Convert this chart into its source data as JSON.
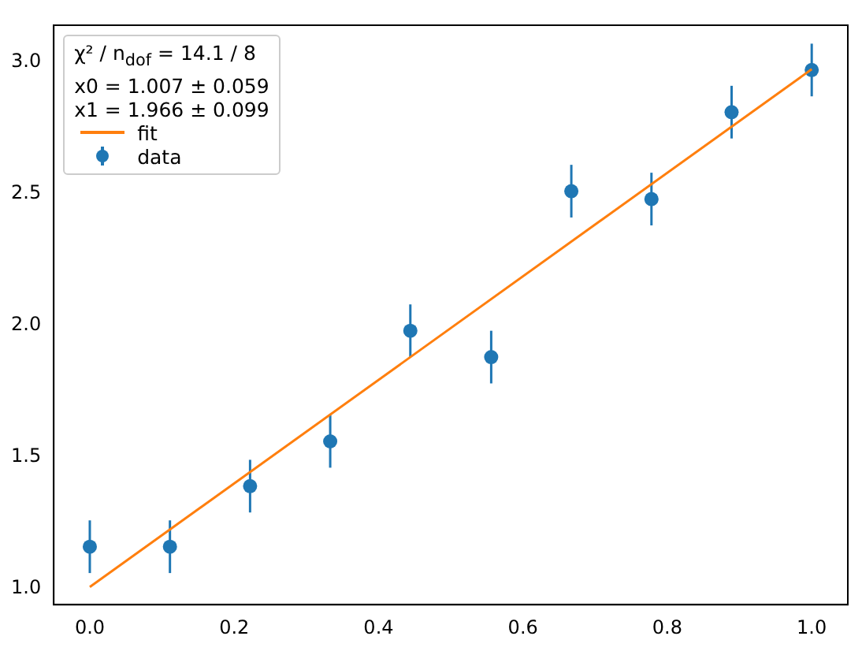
{
  "chart_data": {
    "type": "scatter",
    "annotations": [
      "χ² / n$_{dof}$ = 14.1 / 8",
      "x0 = 1.007 ± 0.059",
      "x1 = 1.966 ± 0.099"
    ],
    "x": [
      0,
      0.111,
      0.222,
      0.333,
      0.444,
      0.556,
      0.667,
      0.778,
      0.889,
      1.0
    ],
    "series": [
      {
        "name": "data",
        "type": "scatter",
        "color": "#1f77b4",
        "marker": "circle",
        "values": [
          1.16,
          1.16,
          1.39,
          1.56,
          1.98,
          1.88,
          2.51,
          2.48,
          2.81,
          2.97
        ],
        "errors": [
          0.1,
          0.1,
          0.1,
          0.1,
          0.1,
          0.1,
          0.1,
          0.1,
          0.1,
          0.1
        ]
      },
      {
        "name": "fit",
        "type": "line",
        "color": "#ff7f0e",
        "marker": "none",
        "line_style": "solid",
        "x": [
          0,
          1.0
        ],
        "values": [
          1.007,
          2.973
        ]
      }
    ],
    "xlim": [
      -0.05,
      1.05
    ],
    "ylim": [
      0.94,
      3.14
    ],
    "xticks": [
      {
        "value": 0,
        "label": "0.0"
      },
      {
        "value": 0.2,
        "label": "0.2"
      },
      {
        "value": 0.4,
        "label": "0.4"
      },
      {
        "value": 0.6,
        "label": "0.6"
      },
      {
        "value": 0.8,
        "label": "0.8"
      },
      {
        "value": 1.0,
        "label": "1.0"
      }
    ],
    "yticks": [
      {
        "value": 1.0,
        "label": "1.0"
      },
      {
        "value": 1.5,
        "label": "1.5"
      },
      {
        "value": 2.0,
        "label": "2.0"
      },
      {
        "value": 2.5,
        "label": "2.5"
      },
      {
        "value": 3.0,
        "label": "3.0"
      }
    ],
    "grid": false,
    "legend": "top left"
  }
}
